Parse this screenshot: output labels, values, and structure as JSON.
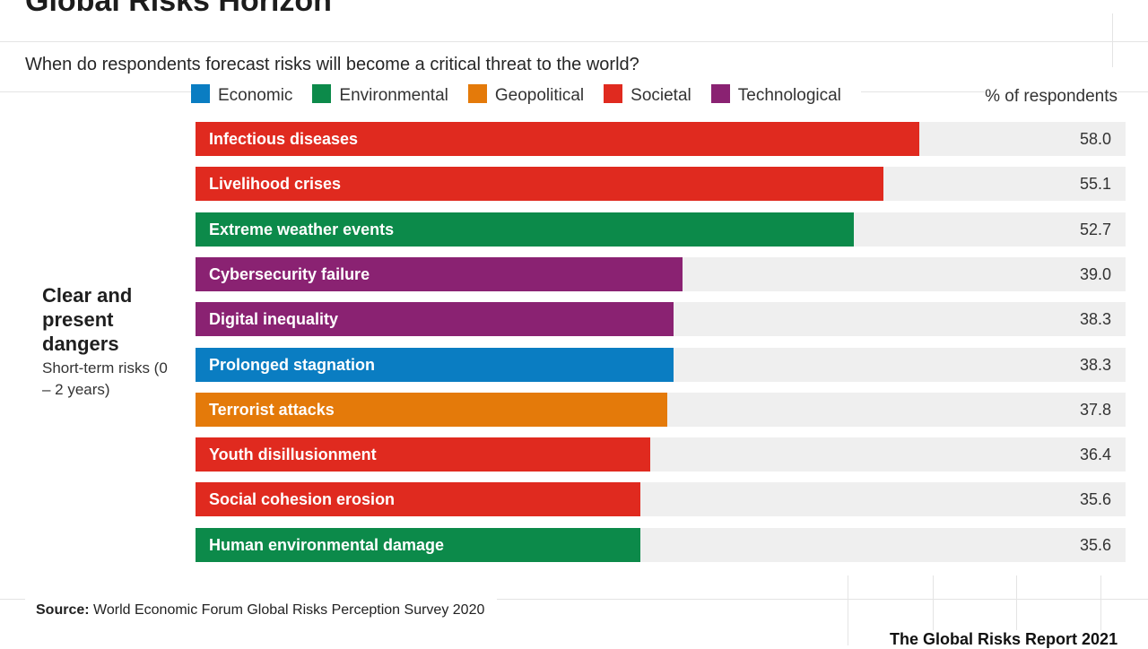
{
  "title": "Global Risks Horizon",
  "subtitle": "When do respondents forecast risks will become a critical threat to the world?",
  "legend": [
    {
      "label": "Economic",
      "color": "#0a7dc2"
    },
    {
      "label": "Environmental",
      "color": "#0c8a4a"
    },
    {
      "label": "Geopolitical",
      "color": "#e47a0a"
    },
    {
      "label": "Societal",
      "color": "#e02a1f"
    },
    {
      "label": "Technological",
      "color": "#8a2272"
    }
  ],
  "column_header": "% of respondents",
  "section": {
    "title": "Clear and present dangers",
    "subtitle": "Short-term risks (0 – 2 years)"
  },
  "chart_data": {
    "type": "bar",
    "orientation": "horizontal",
    "title": "Global Risks Horizon",
    "subtitle": "When do respondents forecast risks will become a critical threat to the world?",
    "value_label": "% of respondents",
    "xlim": [
      0,
      74.5
    ],
    "categories": [
      "Infectious diseases",
      "Livelihood crises",
      "Extreme weather events",
      "Cybersecurity failure",
      "Digital inequality",
      "Prolonged stagnation",
      "Terrorist attacks",
      "Youth disillusionment",
      "Social cohesion erosion",
      "Human environmental damage"
    ],
    "values": [
      58.0,
      55.1,
      52.7,
      39.0,
      38.3,
      38.3,
      37.8,
      36.4,
      35.6,
      35.6
    ],
    "value_labels": [
      "58.0",
      "55.1",
      "52.7",
      "39.0",
      "38.3",
      "38.3",
      "37.8",
      "36.4",
      "35.6",
      "35.6"
    ],
    "risk_category": [
      "Societal",
      "Societal",
      "Environmental",
      "Technological",
      "Technological",
      "Economic",
      "Geopolitical",
      "Societal",
      "Societal",
      "Environmental"
    ]
  },
  "source": {
    "label": "Source:",
    "text": "World Economic Forum Global Risks Perception Survey 2020"
  },
  "report_name": "The Global Risks Report 2021"
}
